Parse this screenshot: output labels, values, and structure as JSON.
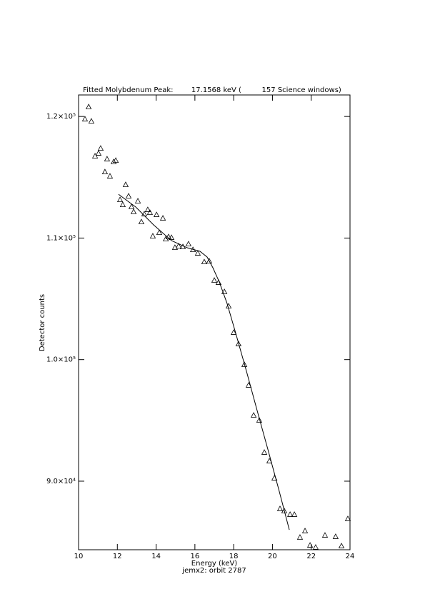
{
  "chart_data": {
    "type": "scatter",
    "title": "Fitted Molybdenum Peak:        17.1568 keV (         157 Science windows)",
    "xlabel": "Energy (keV)",
    "subtitle": "jemx2: orbit 2787",
    "ylabel": "Detector counts",
    "xlim": [
      10,
      24
    ],
    "ylim": [
      84360,
      121770
    ],
    "xticks": [
      10,
      12,
      14,
      16,
      18,
      20,
      22,
      24
    ],
    "yticks": [
      {
        "value": 90000,
        "label": "9.0×10⁴"
      },
      {
        "value": 100000,
        "label": "1.0×10⁵"
      },
      {
        "value": 110000,
        "label": "1.1×10⁵"
      },
      {
        "value": 120000,
        "label": "1.2×10⁵"
      }
    ],
    "color": "#000000",
    "series": [
      {
        "type": "scatter",
        "marker": "triangle",
        "x": [
          10.33,
          10.52,
          10.66,
          10.85,
          11.03,
          11.14,
          11.36,
          11.47,
          11.62,
          11.81,
          11.92,
          12.14,
          12.28,
          12.43,
          12.58,
          12.73,
          12.84,
          13.06,
          13.24,
          13.39,
          13.57,
          13.68,
          13.83,
          14.02,
          14.16,
          14.35,
          14.5,
          14.64,
          14.79,
          14.97,
          15.16,
          15.38,
          15.67,
          15.9,
          16.15,
          16.48,
          16.74,
          17.0,
          17.22,
          17.52,
          17.74,
          18.0,
          18.25,
          18.55,
          18.77,
          19.03,
          19.32,
          19.58,
          19.84,
          20.1,
          20.39,
          20.61,
          20.91,
          21.13,
          21.42,
          21.68,
          21.94,
          22.23,
          22.71,
          23.26,
          23.56,
          23.89
        ],
        "values": [
          119770,
          120770,
          119590,
          116720,
          116950,
          117360,
          115420,
          116480,
          115070,
          116250,
          116360,
          113130,
          112720,
          114370,
          113430,
          112550,
          112140,
          113020,
          111310,
          111960,
          112310,
          112080,
          110140,
          111900,
          110430,
          111610,
          109900,
          110080,
          110020,
          109200,
          109320,
          109260,
          109490,
          109020,
          108730,
          108020,
          108080,
          106500,
          106320,
          105560,
          104380,
          102210,
          101270,
          99570,
          97870,
          95400,
          94990,
          92350,
          91640,
          90230,
          87710,
          87530,
          87240,
          87240,
          85360,
          85890,
          84710,
          84540,
          85530,
          85420,
          84650,
          86890
        ]
      },
      {
        "type": "line",
        "x": [
          12.06,
          12.95,
          13.87,
          14.79,
          15.6,
          16.26,
          16.63,
          16.93,
          17.26,
          17.66,
          18.11,
          18.66,
          19.21,
          19.77,
          20.32,
          20.87
        ],
        "values": [
          113600,
          112550,
          111080,
          109790,
          109200,
          108910,
          108440,
          107550,
          106380,
          104620,
          102150,
          99040,
          95810,
          92580,
          89350,
          86000
        ]
      }
    ]
  }
}
